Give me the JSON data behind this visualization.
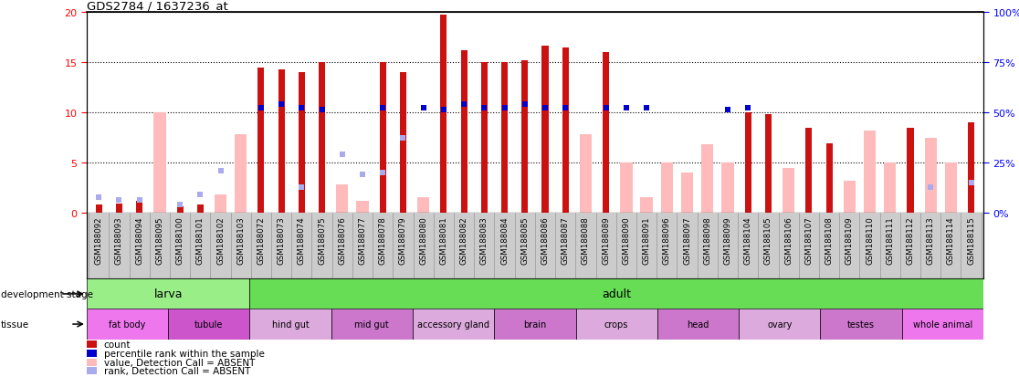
{
  "title": "GDS2784 / 1637236_at",
  "samples": [
    "GSM188092",
    "GSM188093",
    "GSM188094",
    "GSM188095",
    "GSM188100",
    "GSM188101",
    "GSM188102",
    "GSM188103",
    "GSM188072",
    "GSM188073",
    "GSM188074",
    "GSM188075",
    "GSM188076",
    "GSM188077",
    "GSM188078",
    "GSM188079",
    "GSM188080",
    "GSM188081",
    "GSM188082",
    "GSM188083",
    "GSM188084",
    "GSM188085",
    "GSM188086",
    "GSM188087",
    "GSM188088",
    "GSM188089",
    "GSM188090",
    "GSM188091",
    "GSM188096",
    "GSM188097",
    "GSM188098",
    "GSM188099",
    "GSM188104",
    "GSM188105",
    "GSM188106",
    "GSM188107",
    "GSM188108",
    "GSM188109",
    "GSM188110",
    "GSM188111",
    "GSM188112",
    "GSM188113",
    "GSM188114",
    "GSM188115"
  ],
  "count_present": [
    0.8,
    0.9,
    1.2,
    null,
    0.6,
    0.8,
    null,
    null,
    14.5,
    14.3,
    14.0,
    15.0,
    null,
    null,
    15.0,
    14.0,
    null,
    19.8,
    16.2,
    15.0,
    15.0,
    15.2,
    16.7,
    16.5,
    null,
    16.0,
    null,
    null,
    null,
    null,
    null,
    null,
    10.0,
    9.8,
    null,
    8.5,
    6.9,
    null,
    null,
    null,
    8.5,
    null,
    null,
    9.0
  ],
  "rank_present": [
    null,
    null,
    null,
    null,
    null,
    null,
    null,
    null,
    10.5,
    10.8,
    10.5,
    10.3,
    null,
    null,
    10.5,
    null,
    10.5,
    10.3,
    10.8,
    10.5,
    10.5,
    10.8,
    10.5,
    10.5,
    null,
    10.5,
    10.5,
    10.5,
    null,
    null,
    null,
    10.3,
    10.5,
    null,
    null,
    null,
    null,
    null,
    null,
    null,
    null,
    null,
    null,
    null
  ],
  "count_absent": [
    null,
    null,
    null,
    10.0,
    null,
    null,
    1.8,
    7.8,
    null,
    null,
    null,
    null,
    2.8,
    1.2,
    null,
    null,
    1.5,
    null,
    null,
    null,
    null,
    null,
    null,
    null,
    7.8,
    null,
    5.0,
    1.5,
    5.0,
    4.0,
    6.8,
    5.0,
    null,
    null,
    4.5,
    null,
    null,
    3.2,
    8.2,
    5.0,
    null,
    7.5,
    5.0,
    null
  ],
  "rank_absent": [
    1.5,
    1.3,
    1.3,
    null,
    0.8,
    1.8,
    4.2,
    null,
    null,
    null,
    2.5,
    null,
    5.8,
    3.8,
    4.0,
    7.5,
    null,
    null,
    null,
    null,
    null,
    null,
    null,
    null,
    null,
    null,
    null,
    null,
    null,
    null,
    null,
    null,
    null,
    null,
    null,
    null,
    null,
    null,
    null,
    null,
    null,
    2.5,
    null,
    3.0
  ],
  "development_stages": [
    {
      "label": "larva",
      "start": 0,
      "end": 8,
      "color": "#99ee88"
    },
    {
      "label": "adult",
      "start": 8,
      "end": 44,
      "color": "#66dd55"
    }
  ],
  "tissues": [
    {
      "label": "fat body",
      "start": 0,
      "end": 4,
      "color": "#ee77ee"
    },
    {
      "label": "tubule",
      "start": 4,
      "end": 8,
      "color": "#cc55cc"
    },
    {
      "label": "hind gut",
      "start": 8,
      "end": 12,
      "color": "#ddaadd"
    },
    {
      "label": "mid gut",
      "start": 12,
      "end": 16,
      "color": "#cc77cc"
    },
    {
      "label": "accessory gland",
      "start": 16,
      "end": 20,
      "color": "#ddaadd"
    },
    {
      "label": "brain",
      "start": 20,
      "end": 24,
      "color": "#cc77cc"
    },
    {
      "label": "crops",
      "start": 24,
      "end": 28,
      "color": "#ddaadd"
    },
    {
      "label": "head",
      "start": 28,
      "end": 32,
      "color": "#cc77cc"
    },
    {
      "label": "ovary",
      "start": 32,
      "end": 36,
      "color": "#ddaadd"
    },
    {
      "label": "testes",
      "start": 36,
      "end": 40,
      "color": "#cc77cc"
    },
    {
      "label": "whole animal",
      "start": 40,
      "end": 44,
      "color": "#ee77ee"
    }
  ],
  "ylim": [
    0,
    20
  ],
  "yticks": [
    0,
    5,
    10,
    15,
    20
  ],
  "y2ticks": [
    0,
    25,
    50,
    75,
    100
  ],
  "bar_color_present": "#cc1111",
  "bar_color_absent": "#ffbbbb",
  "rank_color_present": "#0000cc",
  "rank_color_absent": "#aaaaee",
  "xticklabel_bg": "#cccccc",
  "xticklabel_sep": "#888888",
  "legend_items": [
    {
      "color": "#cc1111",
      "label": "count"
    },
    {
      "color": "#0000cc",
      "label": "percentile rank within the sample"
    },
    {
      "color": "#ffbbbb",
      "label": "value, Detection Call = ABSENT"
    },
    {
      "color": "#aaaaee",
      "label": "rank, Detection Call = ABSENT"
    }
  ]
}
